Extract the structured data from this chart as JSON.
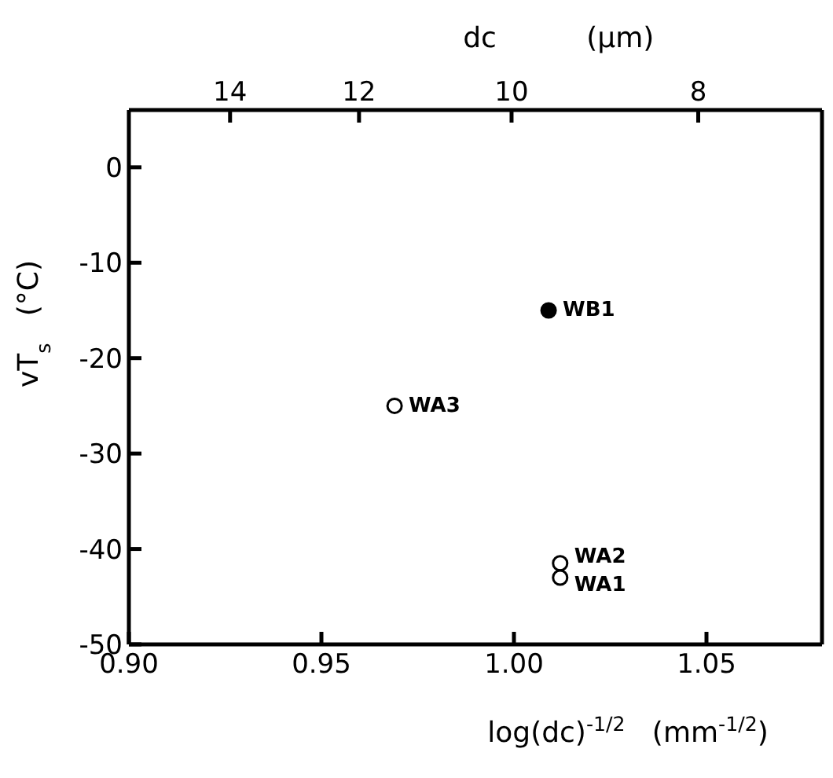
{
  "chart_data": {
    "type": "scatter",
    "xlabel": "log(dc)$^{-1/2}$   (mm$^{-1/2}$)",
    "ylabel": "vT$_{s}$   (°C)",
    "x2label": "dc          (μm)",
    "xlim": [
      0.9,
      1.08
    ],
    "xticks": [
      {
        "value": 0.9,
        "label": "0.90"
      },
      0.95,
      {
        "value": 1.0,
        "label": "1.00"
      },
      1.05
    ],
    "x2lim": [
      15.8,
      6.9
    ],
    "x2ticks": [
      14,
      12,
      10,
      8
    ],
    "log": "x2",
    "ylim": [
      -50,
      6
    ],
    "yticks": [
      -50,
      -40,
      -30,
      -20,
      -10,
      0
    ],
    "marker": "circle",
    "series": [
      {
        "color": "#000000",
        "x": [
          1.009
        ],
        "values": [
          -15
        ]
      },
      {
        "color": "#ffffff",
        "x": [
          0.969,
          1.012,
          1.012
        ],
        "values": [
          -25,
          -41.5,
          -43
        ]
      }
    ],
    "annotations": [
      {
        "text": "WB1",
        "x": 1.009,
        "y": -15
      },
      {
        "text": "WA3",
        "x": 0.969,
        "y": -25
      },
      {
        "text": "WA2",
        "x": 1.012,
        "y": -41.5
      },
      {
        "text": "WA1",
        "x": 1.012,
        "y": -43
      }
    ]
  }
}
